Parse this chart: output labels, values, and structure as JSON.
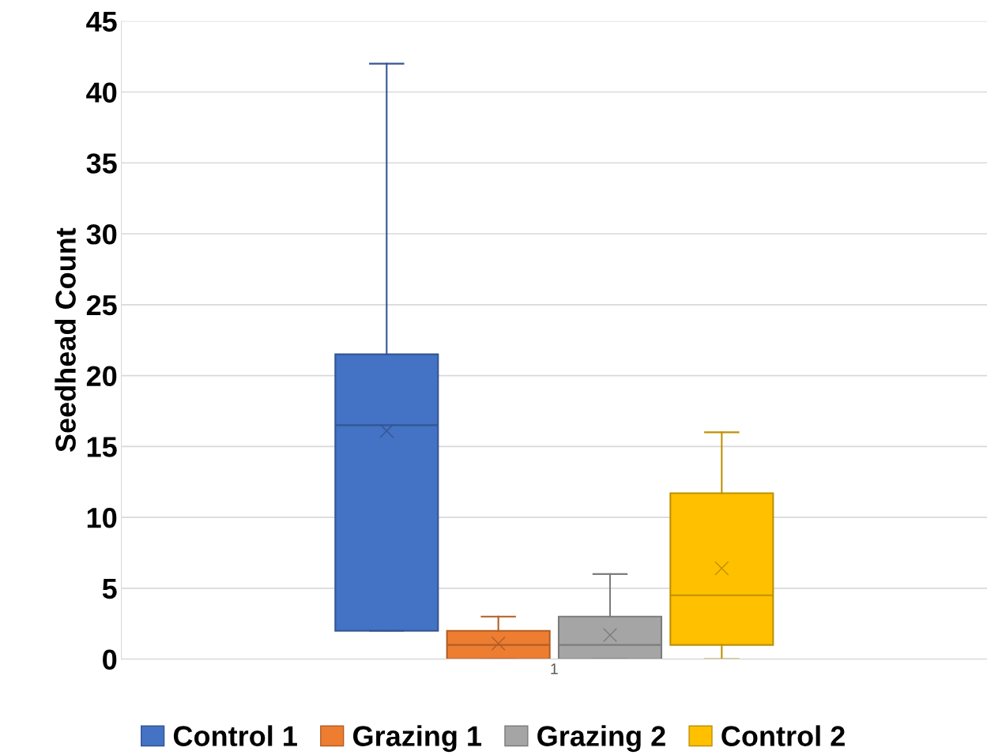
{
  "chart_data": {
    "type": "box",
    "ylabel": "Seedhead Count",
    "categories": [
      "1"
    ],
    "ylim": [
      0,
      45
    ],
    "yticks": [
      0,
      5,
      10,
      15,
      20,
      25,
      30,
      35,
      40,
      45
    ],
    "grid": "y",
    "legend": "bottom",
    "series": [
      {
        "name": "Control 1",
        "color": "#4472c4",
        "boxes": [
          {
            "low": 2,
            "q1": 2,
            "median": 16.5,
            "q3": 21.5,
            "high": 42,
            "mean": 16.1
          }
        ]
      },
      {
        "name": "Grazing 1",
        "color": "#ed7d31",
        "boxes": [
          {
            "low": 0,
            "q1": 0,
            "median": 1,
            "q3": 2,
            "high": 3,
            "mean": 1.1
          }
        ]
      },
      {
        "name": "Grazing 2",
        "color": "#a5a5a5",
        "boxes": [
          {
            "low": 0,
            "q1": 0,
            "median": 1,
            "q3": 3,
            "high": 6,
            "mean": 1.7
          }
        ]
      },
      {
        "name": "Control 2",
        "color": "#ffc000",
        "boxes": [
          {
            "low": 0,
            "q1": 1,
            "median": 4.5,
            "q3": 11.7,
            "high": 16,
            "mean": 6.4
          }
        ]
      }
    ]
  }
}
